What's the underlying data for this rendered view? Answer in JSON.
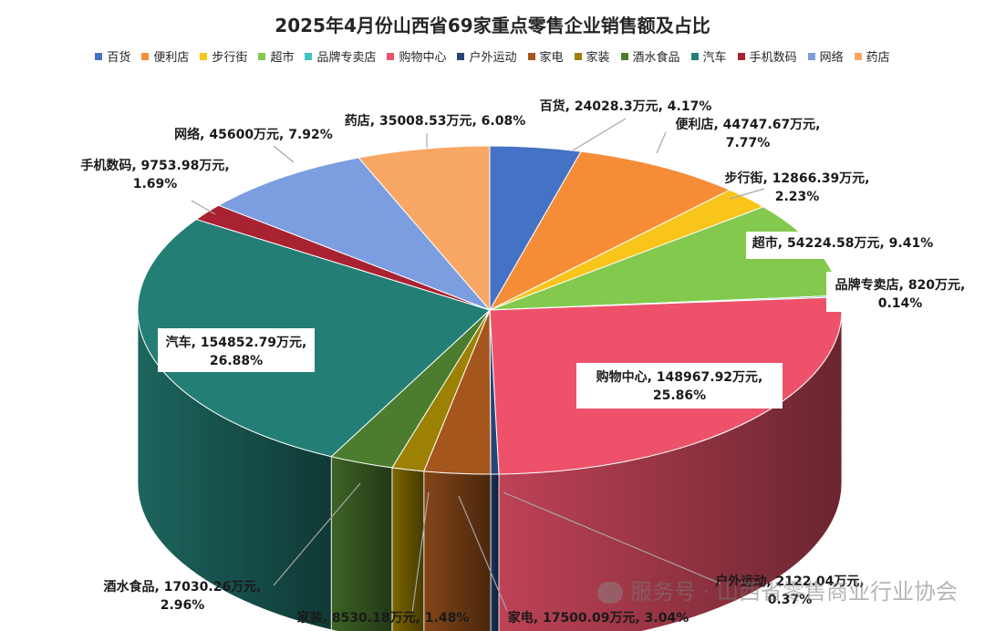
{
  "chart_data": {
    "type": "pie",
    "title": "2025年4月份山西省69家重点零售企业销售额及占比",
    "unit": "万元",
    "legend_position": "top",
    "slices": [
      {
        "name": "百货",
        "value": 24028.3,
        "value_label": "24028.3万元",
        "percent": "4.17%",
        "color": "#4472C4"
      },
      {
        "name": "便利店",
        "value": 44747.67,
        "value_label": "44747.67万元",
        "percent": "7.77%",
        "color": "#F58D38"
      },
      {
        "name": "步行街",
        "value": 12866.39,
        "value_label": "12866.39万元",
        "percent": "2.23%",
        "color": "#F9C51B"
      },
      {
        "name": "超市",
        "value": 54224.58,
        "value_label": "54224.58万元",
        "percent": "9.41%",
        "color": "#82C94D"
      },
      {
        "name": "品牌专卖店",
        "value": 820,
        "value_label": "820万元",
        "percent": "0.14%",
        "color": "#3DC4C4"
      },
      {
        "name": "购物中心",
        "value": 148967.92,
        "value_label": "148967.92万元",
        "percent": "25.86%",
        "color": "#EE526B"
      },
      {
        "name": "户外运动",
        "value": 2122.04,
        "value_label": "2122.04万元",
        "percent": "0.37%",
        "color": "#264478"
      },
      {
        "name": "家电",
        "value": 17500.09,
        "value_label": "17500.09万元",
        "percent": "3.04%",
        "color": "#A5561D"
      },
      {
        "name": "家装",
        "value": 8530.18,
        "value_label": "8530.18万元",
        "percent": "1.48%",
        "color": "#9C8104"
      },
      {
        "name": "酒水食品",
        "value": 17030.26,
        "value_label": "17030.26万元",
        "percent": "2.96%",
        "color": "#4C7D2E"
      },
      {
        "name": "汽车",
        "value": 154852.79,
        "value_label": "154852.79万元",
        "percent": "26.88%",
        "color": "#237E76"
      },
      {
        "name": "手机数码",
        "value": 9753.98,
        "value_label": "9753.98万元",
        "percent": "1.69%",
        "color": "#A92231"
      },
      {
        "name": "网络",
        "value": 45600,
        "value_label": "45600万元",
        "percent": "7.92%",
        "color": "#7C9EE0"
      },
      {
        "name": "药店",
        "value": 35008.53,
        "value_label": "35008.53万元",
        "percent": "6.08%",
        "color": "#F9A765"
      }
    ]
  },
  "watermark": "服务号 · 山西省零售商业行业协会"
}
